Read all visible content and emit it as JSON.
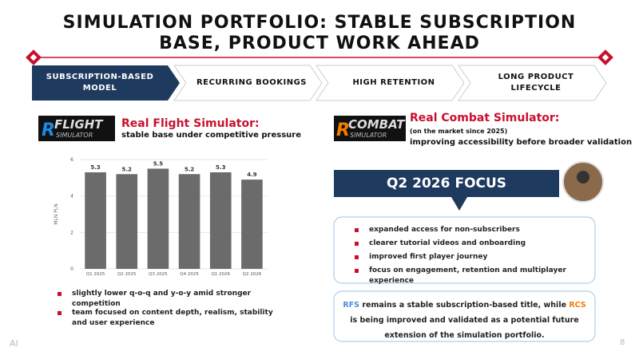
{
  "title": [
    "SIMULATION PORTFOLIO: STABLE SUBSCRIPTION",
    "BASE, PRODUCT WORK AHEAD"
  ],
  "steps": [
    "SUBSCRIPTION-BASED MODEL",
    "RECURRING BOOKINGS",
    "HIGH RETENTION",
    "LONG PRODUCT LIFECYCLE"
  ],
  "left": {
    "logo": [
      "FLIGHT",
      "SIMULATOR"
    ],
    "heading": "Real Flight Simulator:",
    "subheading": "stable base under competitive pressure",
    "bullets": [
      "slightly lower q-o-q and y-o-y amid stronger competition",
      "team focused on content depth, realism, stability and user experience"
    ]
  },
  "chart_data": {
    "type": "bar",
    "categories": [
      "Q1 2025",
      "Q2 2025",
      "Q3 2025",
      "Q4 2025",
      "Q1 2026",
      "Q2 2026"
    ],
    "values": [
      5.3,
      5.2,
      5.5,
      5.2,
      5.3,
      4.9
    ],
    "color": "#6b6b6b",
    "ylabel": "MLN PLN",
    "ylim": [
      0,
      6
    ],
    "yticks": [
      0,
      2,
      4,
      6
    ],
    "grid": true
  },
  "right": {
    "logo": [
      "COMBAT",
      "SIMULATOR"
    ],
    "heading": "Real Combat Simulator:",
    "note": "(on the market since 2025)",
    "subheading": "improving accessibility before broader validation",
    "focus": [
      "Q2 2026",
      "FOCUS"
    ],
    "bullets": [
      "expanded access for non-subscribers",
      "clearer tutorial videos and onboarding",
      "improved first player journey",
      "focus on engagement, retention and multiplayer experience"
    ],
    "summary": [
      "RFS",
      " remains a stable subscription-based title, while ",
      "RCS",
      " is being improved and validated as a potential future extension of the simulation portfolio."
    ]
  },
  "footer": {
    "left": "AI",
    "page": "8"
  }
}
